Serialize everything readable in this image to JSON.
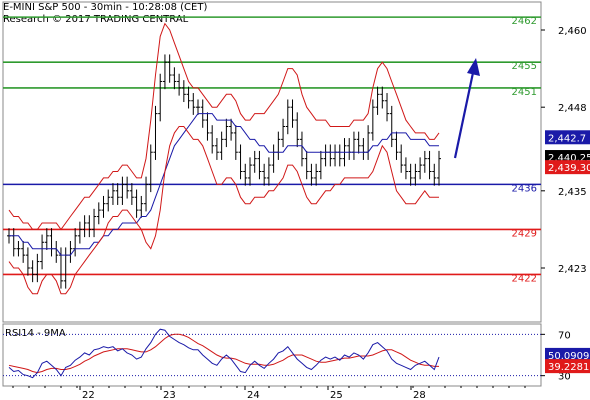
{
  "header": {
    "title": "E-MINI S&P 500 - 30min - 10:28:08 (CET)",
    "source": "Research © 2017 TRADING CENTRAL"
  },
  "chart_data": [
    {
      "type": "line",
      "title": "E-MINI S&P 500 - 30min - 10:28:08 (CET)",
      "ylim": [
        2416,
        2463
      ],
      "y_ticks": [
        "2,460",
        "2,448",
        "2,435",
        "2,423"
      ],
      "y_tick_values": [
        2460,
        2448,
        2435,
        2423
      ],
      "x_ticks": [
        "22",
        "23",
        "24",
        "25",
        "28"
      ],
      "grid": false,
      "levels": [
        {
          "label": "2462",
          "value": 2462,
          "color": "#2e9a2e"
        },
        {
          "label": "2455",
          "value": 2455,
          "color": "#2e9a2e"
        },
        {
          "label": "2451",
          "value": 2451,
          "color": "#2e9a2e"
        },
        {
          "label": "2436",
          "value": 2436,
          "color": "#1a1aa8"
        },
        {
          "label": "2429",
          "value": 2429,
          "color": "#e01a1a"
        },
        {
          "label": "2422",
          "value": 2422,
          "color": "#e01a1a"
        }
      ],
      "price_tags": [
        {
          "label": "2,442.7",
          "value": 2442.7,
          "bg": "#1a1aa8",
          "fg": "#ffffff"
        },
        {
          "label": "2,440.25",
          "value": 2440.25,
          "bg": "#000000",
          "fg": "#ffffff"
        },
        {
          "label": "2,439.30",
          "value": 2439.3,
          "bg": "#e01a1a",
          "fg": "#ffffff"
        }
      ],
      "series": [
        {
          "values": [
            2428,
            2426,
            2426,
            2425,
            2423,
            2422,
            2424,
            2427,
            2428,
            2426,
            2425,
            2421,
            2425,
            2426,
            2428,
            2429,
            2430,
            2429,
            2431,
            2432,
            2433,
            2434,
            2435,
            2434,
            2436,
            2435,
            2434,
            2432,
            2433,
            2436,
            2441,
            2447,
            2452,
            2455,
            2453,
            2452,
            2451,
            2450,
            2449,
            2448,
            2448,
            2446,
            2444,
            2442,
            2441,
            2443,
            2445,
            2444,
            2441,
            2438,
            2437,
            2439,
            2440,
            2438,
            2437,
            2439,
            2441,
            2443,
            2445,
            2448,
            2446,
            2443,
            2440,
            2438,
            2437,
            2438,
            2440,
            2441,
            2440,
            2441,
            2440,
            2442,
            2441,
            2443,
            2442,
            2441,
            2444,
            2448,
            2450,
            2449,
            2447,
            2443,
            2441,
            2439,
            2438,
            2437,
            2438,
            2439,
            2440,
            2438,
            2437,
            2440
          ]
        },
        {
          "values": [
            2428,
            2428,
            2428,
            2427,
            2427,
            2426,
            2426,
            2426,
            2426,
            2426,
            2426,
            2425,
            2425,
            2425,
            2426,
            2426,
            2426,
            2426,
            2427,
            2427,
            2428,
            2428,
            2429,
            2429,
            2430,
            2430,
            2430,
            2430,
            2431,
            2431,
            2432,
            2434,
            2436,
            2438,
            2440,
            2442,
            2443,
            2444,
            2445,
            2446,
            2447,
            2447,
            2447,
            2447,
            2446,
            2446,
            2446,
            2446,
            2445,
            2445,
            2444,
            2443,
            2443,
            2442,
            2442,
            2441,
            2441,
            2441,
            2441,
            2442,
            2442,
            2442,
            2442,
            2441,
            2441,
            2441,
            2441,
            2441,
            2441,
            2441,
            2441,
            2441,
            2441,
            2441,
            2441,
            2441,
            2441,
            2442,
            2442,
            2443,
            2443,
            2444,
            2444,
            2444,
            2444,
            2443,
            2443,
            2443,
            2443,
            2442,
            2442,
            2442
          ]
        },
        {
          "values": [
            2432,
            2431,
            2431,
            2430,
            2430,
            2429,
            2429,
            2430,
            2430,
            2430,
            2430,
            2429,
            2430,
            2431,
            2432,
            2433,
            2434,
            2434,
            2435,
            2436,
            2437,
            2437,
            2438,
            2438,
            2439,
            2439,
            2438,
            2437,
            2437,
            2440,
            2446,
            2453,
            2459,
            2461,
            2460,
            2458,
            2456,
            2454,
            2452,
            2451,
            2451,
            2450,
            2449,
            2448,
            2448,
            2449,
            2450,
            2450,
            2449,
            2447,
            2446,
            2446,
            2447,
            2447,
            2447,
            2448,
            2449,
            2450,
            2452,
            2454,
            2454,
            2453,
            2450,
            2448,
            2447,
            2446,
            2446,
            2446,
            2445,
            2445,
            2445,
            2445,
            2445,
            2446,
            2446,
            2446,
            2447,
            2451,
            2454,
            2455,
            2454,
            2452,
            2450,
            2448,
            2446,
            2445,
            2444,
            2444,
            2444,
            2443,
            2443,
            2444
          ]
        },
        {
          "values": [
            2424,
            2423,
            2423,
            2422,
            2420,
            2419,
            2419,
            2421,
            2422,
            2422,
            2421,
            2419,
            2419,
            2420,
            2422,
            2423,
            2424,
            2425,
            2426,
            2427,
            2428,
            2430,
            2431,
            2431,
            2432,
            2432,
            2431,
            2430,
            2429,
            2427,
            2426,
            2428,
            2432,
            2438,
            2442,
            2444,
            2445,
            2445,
            2444,
            2443,
            2443,
            2442,
            2440,
            2438,
            2436,
            2436,
            2437,
            2437,
            2436,
            2434,
            2433,
            2433,
            2434,
            2434,
            2434,
            2435,
            2435,
            2436,
            2437,
            2439,
            2439,
            2438,
            2436,
            2434,
            2433,
            2433,
            2434,
            2435,
            2435,
            2436,
            2436,
            2437,
            2437,
            2437,
            2437,
            2437,
            2437,
            2438,
            2440,
            2442,
            2441,
            2438,
            2435,
            2434,
            2433,
            2433,
            2433,
            2434,
            2435,
            2434,
            2434,
            2434
          ]
        }
      ]
    },
    {
      "type": "line",
      "title": "RSI14 - 9MA",
      "ylim": [
        20,
        80
      ],
      "y_ticks": [
        "70",
        "30"
      ],
      "y_tick_values": [
        70,
        30
      ],
      "grid": false,
      "price_tags": [
        {
          "label": "50.0909",
          "value": 50.09,
          "bg": "#1a1aa8",
          "fg": "#ffffff"
        },
        {
          "label": "39.2281",
          "value": 39.23,
          "bg": "#e01a1a",
          "fg": "#ffffff"
        }
      ],
      "series": [
        {
          "values": [
            38,
            34,
            35,
            31,
            30,
            28,
            33,
            42,
            44,
            40,
            36,
            30,
            38,
            40,
            45,
            48,
            52,
            50,
            55,
            56,
            58,
            57,
            58,
            54,
            56,
            52,
            50,
            46,
            48,
            56,
            62,
            70,
            75,
            74,
            68,
            65,
            62,
            60,
            57,
            55,
            55,
            50,
            46,
            42,
            40,
            46,
            50,
            46,
            40,
            34,
            33,
            40,
            44,
            40,
            37,
            42,
            46,
            52,
            54,
            58,
            52,
            46,
            42,
            38,
            36,
            40,
            45,
            48,
            46,
            48,
            45,
            50,
            48,
            52,
            50,
            46,
            52,
            60,
            62,
            58,
            54,
            46,
            42,
            40,
            38,
            36,
            40,
            42,
            44,
            40,
            36,
            48
          ]
        },
        {
          "values": [
            40,
            39,
            38,
            37,
            36,
            34,
            33,
            34,
            36,
            37,
            37,
            36,
            36,
            37,
            39,
            41,
            44,
            46,
            49,
            51,
            53,
            54,
            55,
            56,
            56,
            56,
            55,
            54,
            53,
            53,
            55,
            58,
            62,
            66,
            69,
            70,
            70,
            69,
            67,
            64,
            61,
            59,
            56,
            53,
            50,
            48,
            47,
            47,
            46,
            44,
            42,
            41,
            41,
            41,
            40,
            40,
            41,
            43,
            45,
            48,
            50,
            50,
            50,
            48,
            46,
            44,
            43,
            43,
            44,
            45,
            46,
            47,
            47,
            48,
            49,
            49,
            49,
            50,
            52,
            54,
            55,
            55,
            53,
            51,
            48,
            45,
            43,
            41,
            40,
            40,
            39,
            39
          ]
        }
      ]
    }
  ]
}
